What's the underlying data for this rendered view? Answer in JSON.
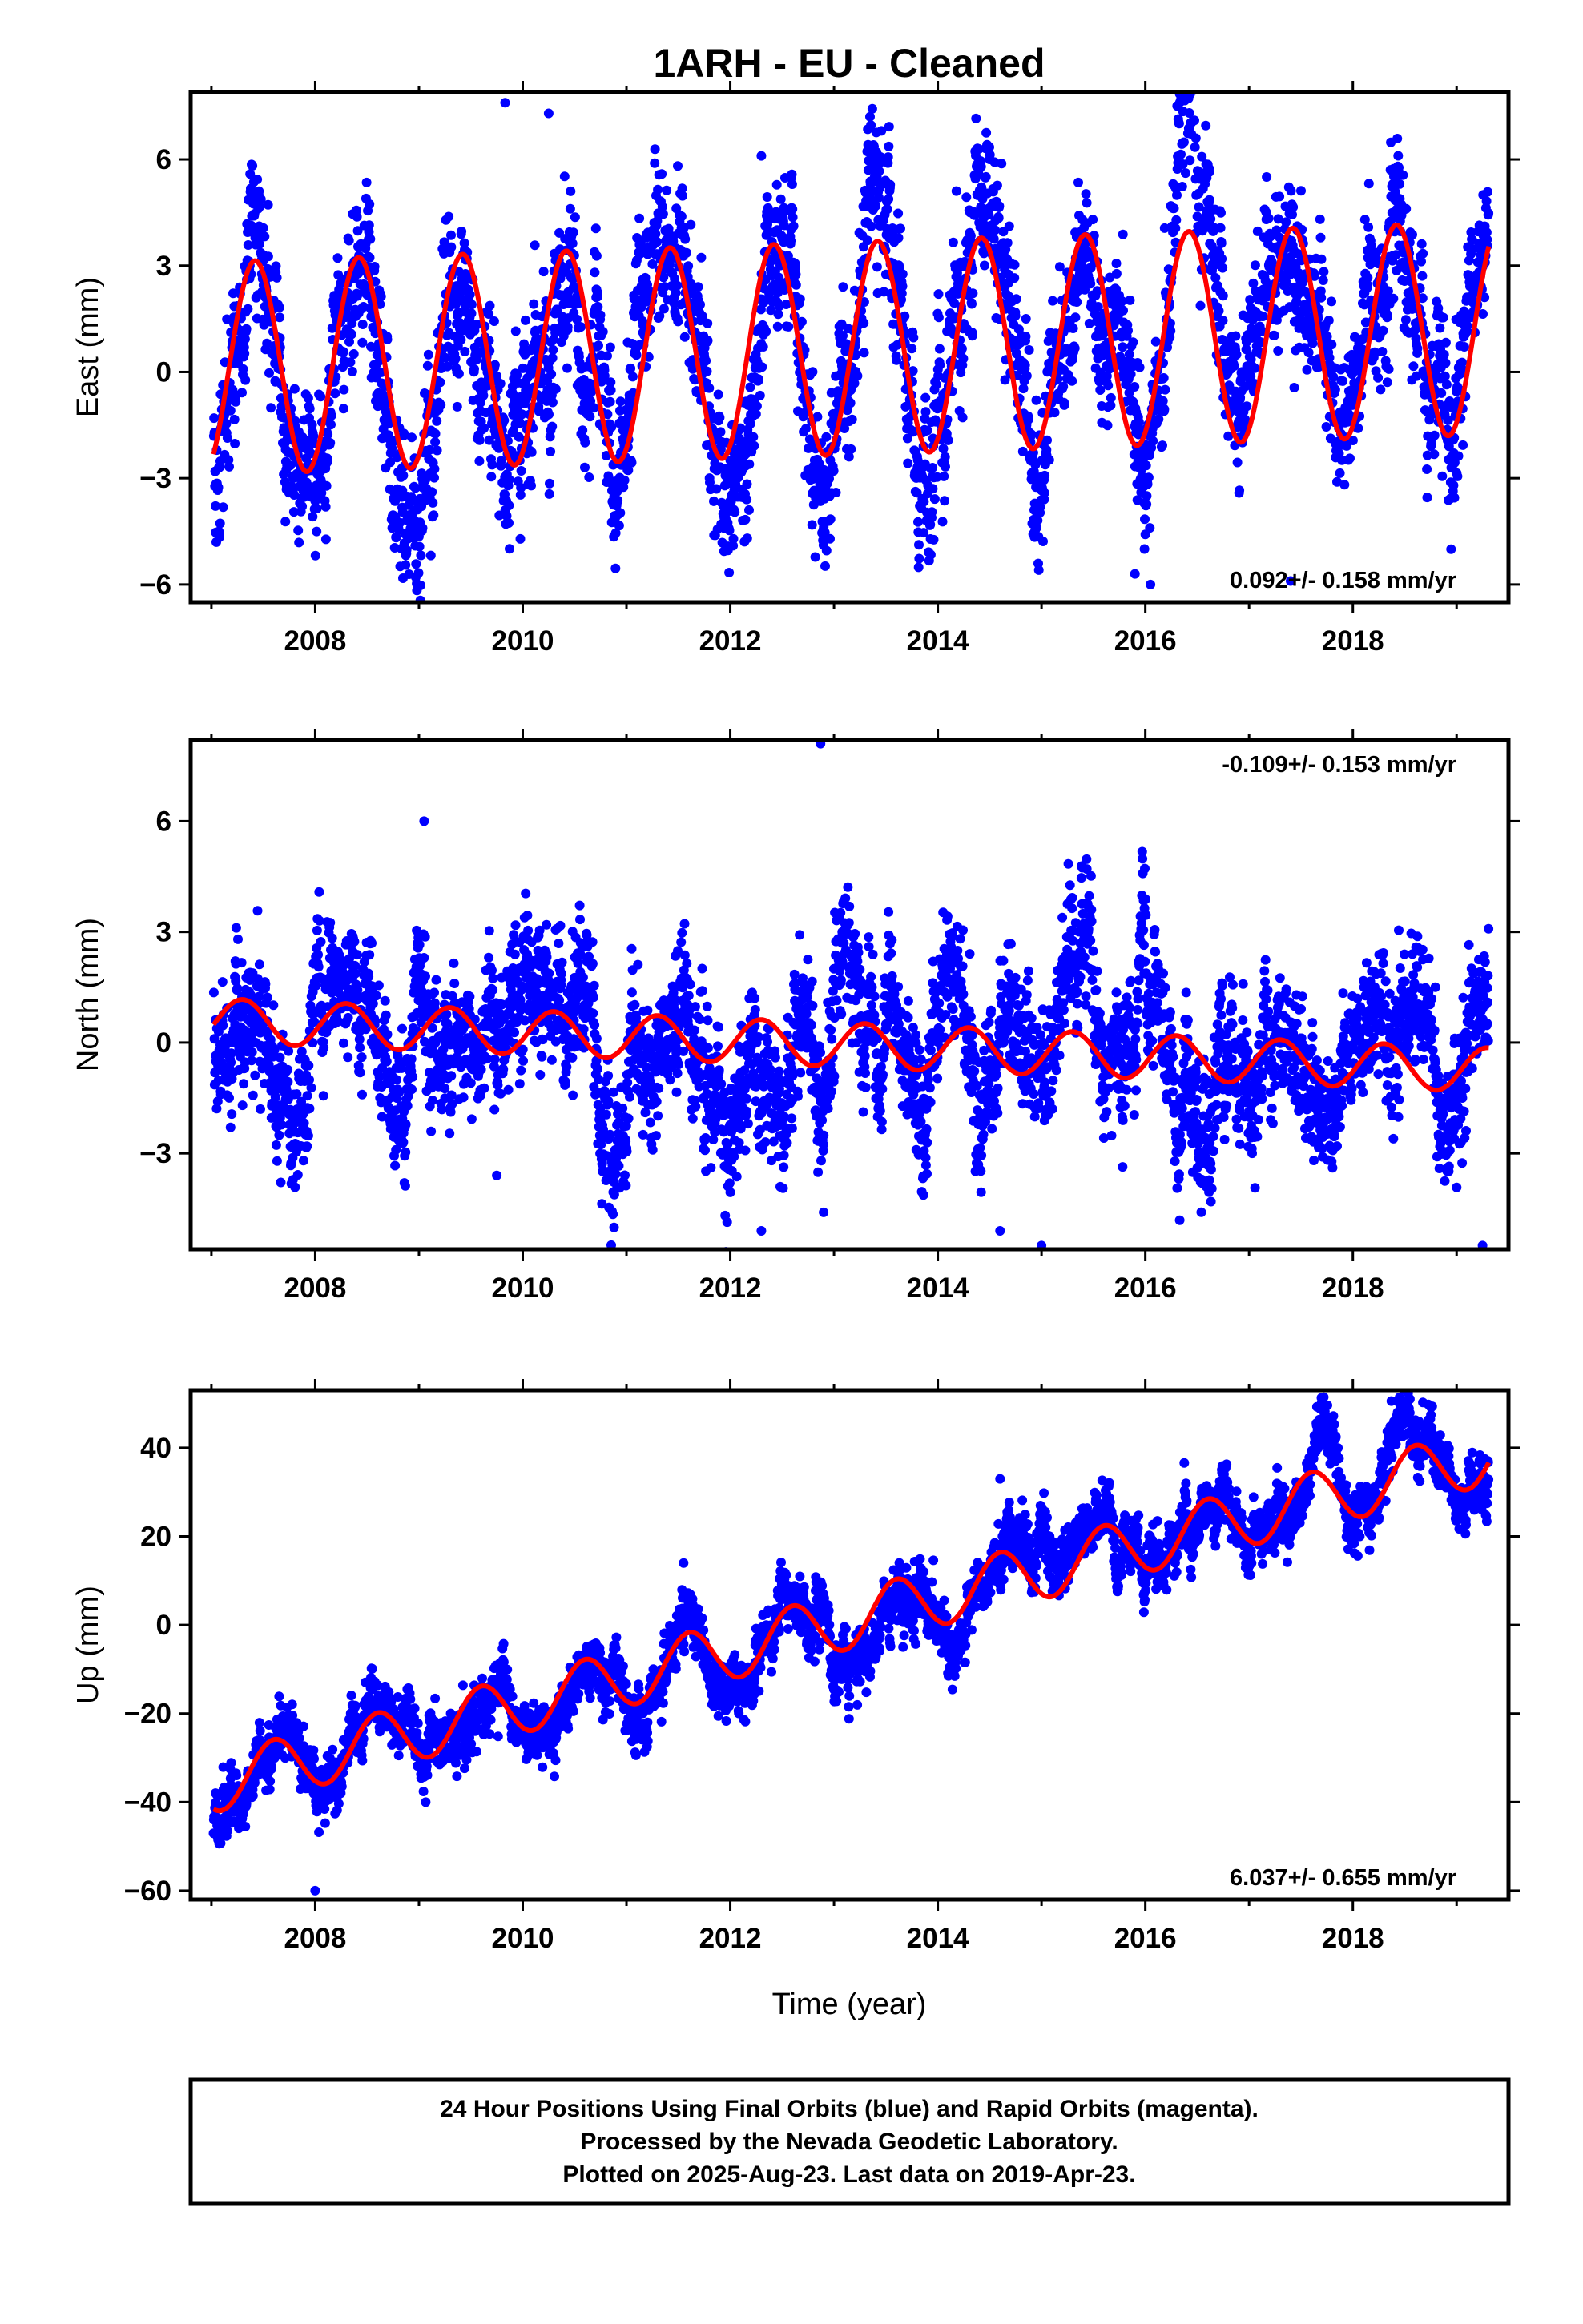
{
  "chart_data": {
    "type": "scatter",
    "title": "1ARH  - EU - Cleaned",
    "xlabel": "Time (year)",
    "x_ticks": [
      2008,
      2010,
      2012,
      2014,
      2016,
      2018
    ],
    "xlim": [
      2006.8,
      2019.5
    ],
    "colors": {
      "points": "#0000ff",
      "fit": "#ff0000",
      "frame": "#000000"
    },
    "panels": [
      {
        "id": "east",
        "ylabel": "East (mm)",
        "ylim": [
          -6.5,
          7.9
        ],
        "y_ticks": [
          6,
          3,
          0,
          -3,
          -6
        ],
        "y_tick_labels": [
          "6",
          "3",
          "0",
          "−3",
          "−6"
        ],
        "rate": "0.092+/- 0.158 mm/yr",
        "rate_position": "bottom-right",
        "trend": 0.092,
        "offset": 0.1,
        "annual_amplitude": 3.0,
        "annual_peak_fraction": 0.42,
        "noise": 1.3,
        "outliers": [
          [
            2009.83,
            7.6
          ],
          [
            2010.25,
            7.3
          ],
          [
            2012.3,
            6.1
          ],
          [
            2016.05,
            -6.0
          ],
          [
            2017.4,
            -5.9
          ],
          [
            2015.9,
            -5.7
          ]
        ]
      },
      {
        "id": "north",
        "ylabel": "North (mm)",
        "ylim": [
          -5.6,
          8.2
        ],
        "y_ticks": [
          6,
          3,
          0,
          -3
        ],
        "y_tick_labels": [
          "6",
          "3",
          "0",
          "−3"
        ],
        "rate": "-0.109+/- 0.153 mm/yr",
        "rate_position": "top-right",
        "trend": -0.109,
        "offset": 0.6,
        "annual_amplitude": 0.6,
        "annual_peak_fraction": 0.3,
        "noise": 1.1,
        "outliers": [
          [
            2012.87,
            8.1
          ],
          [
            2009.05,
            6.0
          ],
          [
            2012.3,
            -5.1
          ],
          [
            2014.6,
            -5.1
          ],
          [
            2015.0,
            -5.5
          ],
          [
            2019.25,
            -5.5
          ],
          [
            2012.9,
            -4.6
          ],
          [
            2009.75,
            -3.6
          ]
        ]
      },
      {
        "id": "up",
        "ylabel": "Up (mm)",
        "ylim": [
          -62,
          53
        ],
        "y_ticks": [
          40,
          20,
          0,
          -20,
          -40,
          -60
        ],
        "y_tick_labels": [
          "40",
          "20",
          "0",
          "−20",
          "−40",
          "−60"
        ],
        "rate": "6.037+/- 0.655 mm/yr",
        "rate_position": "bottom-right",
        "trend": 6.037,
        "offset": -36,
        "annual_amplitude": 6.5,
        "annual_peak_fraction": 0.6,
        "noise": 4.0,
        "outliers": [
          [
            2018.55,
            51
          ],
          [
            2008.0,
            -60
          ],
          [
            2011.55,
            14
          ],
          [
            2014.6,
            33
          ]
        ]
      }
    ]
  },
  "caption": {
    "lines": [
      "24 Hour Positions Using Final Orbits (blue) and Rapid Orbits (magenta).",
      "Processed by the Nevada Geodetic Laboratory.",
      "Plotted on 2025-Aug-23. Last data on 2019-Apr-23."
    ]
  }
}
